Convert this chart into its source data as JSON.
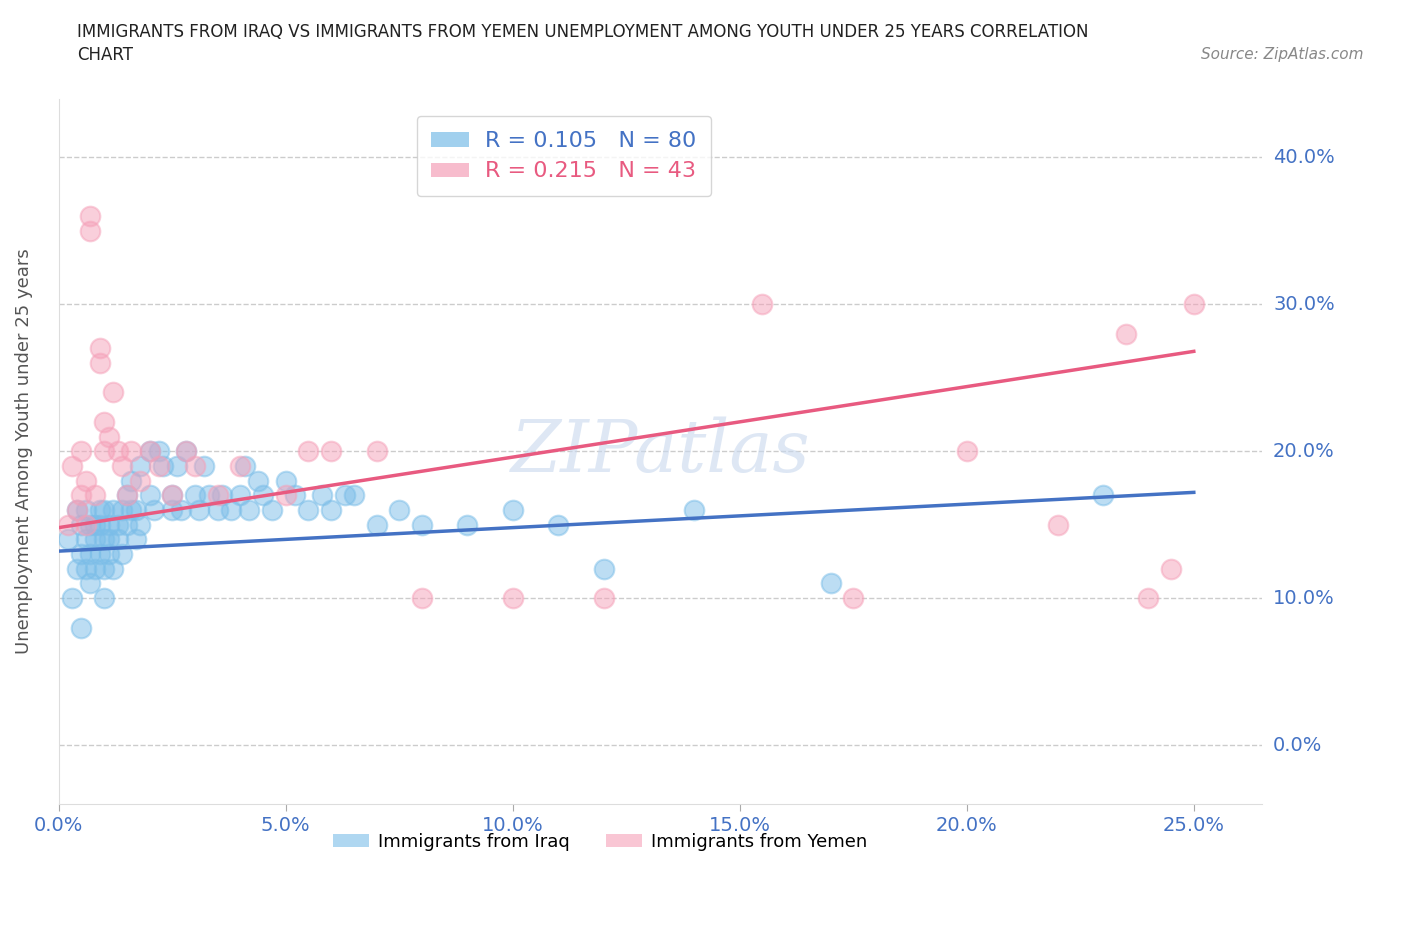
{
  "title_line1": "IMMIGRANTS FROM IRAQ VS IMMIGRANTS FROM YEMEN UNEMPLOYMENT AMONG YOUTH UNDER 25 YEARS CORRELATION",
  "title_line2": "CHART",
  "source": "Source: ZipAtlas.com",
  "ylabel": "Unemployment Among Youth under 25 years",
  "xlabel_ticks": [
    "0.0%",
    "5.0%",
    "10.0%",
    "15.0%",
    "20.0%",
    "25.0%"
  ],
  "ylabel_ticks_left": [
    "",
    "",
    "",
    "",
    ""
  ],
  "ylabel_ticks_right": [
    "40.0%",
    "30.0%",
    "20.0%",
    "10.0%",
    "0.0%"
  ],
  "xlim": [
    0.0,
    0.265
  ],
  "ylim": [
    -0.04,
    0.44
  ],
  "ytick_vals": [
    0.0,
    0.1,
    0.2,
    0.3,
    0.4
  ],
  "iraq_R": 0.105,
  "iraq_N": 80,
  "yemen_R": 0.215,
  "yemen_N": 43,
  "iraq_color": "#7abde8",
  "yemen_color": "#f5a0b8",
  "iraq_line_color": "#4472c4",
  "yemen_line_color": "#e85a80",
  "tick_label_color": "#4472c4",
  "legend_iraq_label": "Immigrants from Iraq",
  "legend_yemen_label": "Immigrants from Yemen",
  "watermark": "ZIPatlas",
  "iraq_x": [
    0.002,
    0.003,
    0.004,
    0.004,
    0.005,
    0.005,
    0.005,
    0.006,
    0.006,
    0.006,
    0.007,
    0.007,
    0.007,
    0.008,
    0.008,
    0.008,
    0.009,
    0.009,
    0.009,
    0.01,
    0.01,
    0.01,
    0.01,
    0.011,
    0.011,
    0.011,
    0.012,
    0.012,
    0.013,
    0.013,
    0.014,
    0.014,
    0.015,
    0.015,
    0.016,
    0.016,
    0.017,
    0.017,
    0.018,
    0.018,
    0.02,
    0.02,
    0.021,
    0.022,
    0.023,
    0.025,
    0.025,
    0.026,
    0.027,
    0.028,
    0.03,
    0.031,
    0.032,
    0.033,
    0.035,
    0.036,
    0.038,
    0.04,
    0.041,
    0.042,
    0.044,
    0.045,
    0.047,
    0.05,
    0.052,
    0.055,
    0.058,
    0.06,
    0.063,
    0.065,
    0.07,
    0.075,
    0.08,
    0.09,
    0.1,
    0.11,
    0.12,
    0.14,
    0.17,
    0.23
  ],
  "iraq_y": [
    0.14,
    0.1,
    0.12,
    0.16,
    0.13,
    0.15,
    0.08,
    0.14,
    0.12,
    0.16,
    0.15,
    0.13,
    0.11,
    0.15,
    0.14,
    0.12,
    0.16,
    0.13,
    0.15,
    0.14,
    0.12,
    0.16,
    0.1,
    0.15,
    0.14,
    0.13,
    0.16,
    0.12,
    0.15,
    0.14,
    0.16,
    0.13,
    0.17,
    0.15,
    0.16,
    0.18,
    0.16,
    0.14,
    0.19,
    0.15,
    0.2,
    0.17,
    0.16,
    0.2,
    0.19,
    0.17,
    0.16,
    0.19,
    0.16,
    0.2,
    0.17,
    0.16,
    0.19,
    0.17,
    0.16,
    0.17,
    0.16,
    0.17,
    0.19,
    0.16,
    0.18,
    0.17,
    0.16,
    0.18,
    0.17,
    0.16,
    0.17,
    0.16,
    0.17,
    0.17,
    0.15,
    0.16,
    0.15,
    0.15,
    0.16,
    0.15,
    0.12,
    0.16,
    0.11,
    0.17
  ],
  "yemen_x": [
    0.002,
    0.003,
    0.004,
    0.005,
    0.005,
    0.006,
    0.006,
    0.007,
    0.007,
    0.008,
    0.009,
    0.009,
    0.01,
    0.01,
    0.011,
    0.012,
    0.013,
    0.014,
    0.015,
    0.016,
    0.018,
    0.02,
    0.022,
    0.025,
    0.028,
    0.03,
    0.035,
    0.04,
    0.05,
    0.055,
    0.06,
    0.07,
    0.08,
    0.1,
    0.12,
    0.155,
    0.175,
    0.2,
    0.22,
    0.235,
    0.24,
    0.245,
    0.25
  ],
  "yemen_y": [
    0.15,
    0.19,
    0.16,
    0.2,
    0.17,
    0.18,
    0.15,
    0.36,
    0.35,
    0.17,
    0.27,
    0.26,
    0.22,
    0.2,
    0.21,
    0.24,
    0.2,
    0.19,
    0.17,
    0.2,
    0.18,
    0.2,
    0.19,
    0.17,
    0.2,
    0.19,
    0.17,
    0.19,
    0.17,
    0.2,
    0.2,
    0.2,
    0.1,
    0.1,
    0.1,
    0.3,
    0.1,
    0.2,
    0.15,
    0.28,
    0.1,
    0.12,
    0.3
  ],
  "iraq_line_x0": 0.0,
  "iraq_line_y0": 0.132,
  "iraq_line_x1": 0.25,
  "iraq_line_y1": 0.172,
  "yemen_line_x0": 0.0,
  "yemen_line_y0": 0.148,
  "yemen_line_x1": 0.25,
  "yemen_line_y1": 0.268
}
